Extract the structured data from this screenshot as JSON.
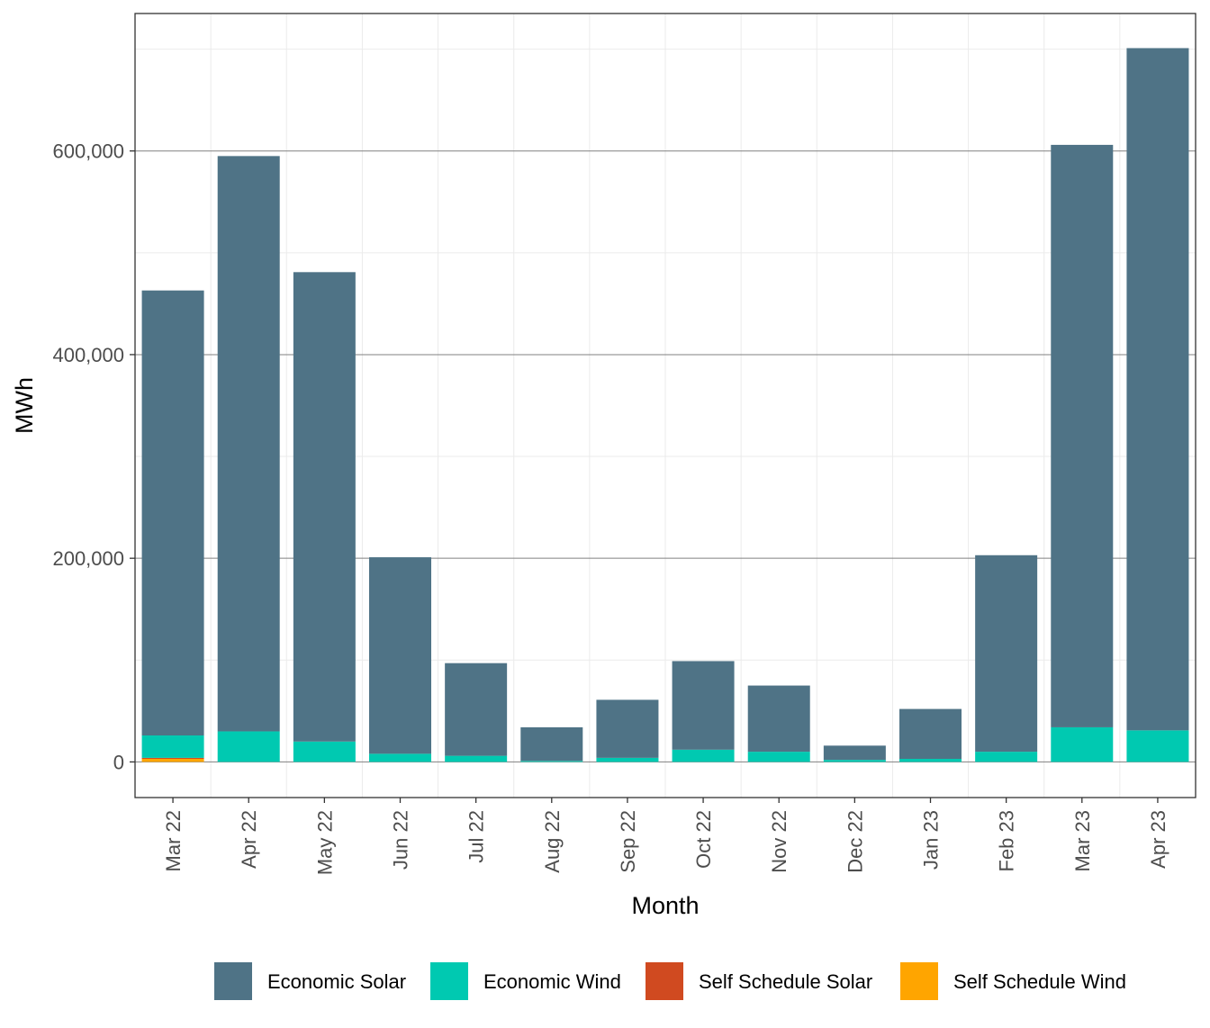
{
  "chart_data": {
    "type": "bar",
    "stacked": true,
    "xlabel": "Month",
    "ylabel": "MWh",
    "categories": [
      "Mar 22",
      "Apr 22",
      "May 22",
      "Jun 22",
      "Jul 22",
      "Aug 22",
      "Sep 22",
      "Oct 22",
      "Nov 22",
      "Dec 22",
      "Jan 23",
      "Feb 23",
      "Mar 23",
      "Apr 23"
    ],
    "series": [
      {
        "name": "Self Schedule Wind",
        "color": "#FFA500",
        "values": [
          3000,
          0,
          0,
          0,
          0,
          0,
          0,
          0,
          0,
          0,
          0,
          0,
          0,
          0
        ]
      },
      {
        "name": "Self Schedule Solar",
        "color": "#D04A20",
        "values": [
          1000,
          0,
          0,
          0,
          0,
          0,
          0,
          0,
          0,
          0,
          0,
          0,
          0,
          0
        ]
      },
      {
        "name": "Economic Wind",
        "color": "#00C9B1",
        "values": [
          22000,
          30000,
          20000,
          8000,
          6000,
          1000,
          4000,
          12000,
          10000,
          2000,
          3000,
          10000,
          34000,
          31000
        ]
      },
      {
        "name": "Economic Solar",
        "color": "#4F7386",
        "values": [
          437000,
          565000,
          461000,
          193000,
          91000,
          33000,
          57000,
          87000,
          65000,
          14000,
          49000,
          193000,
          572000,
          670000
        ]
      }
    ],
    "legend_order": [
      "Economic Solar",
      "Economic Wind",
      "Self Schedule Solar",
      "Self Schedule Wind"
    ],
    "yticks": [
      0,
      200000,
      400000,
      600000
    ],
    "ytick_labels": [
      "0",
      "200,000",
      "400,000",
      "600,000"
    ],
    "ylim": [
      -35000,
      735000
    ],
    "grid": true,
    "legend_position": "bottom"
  }
}
